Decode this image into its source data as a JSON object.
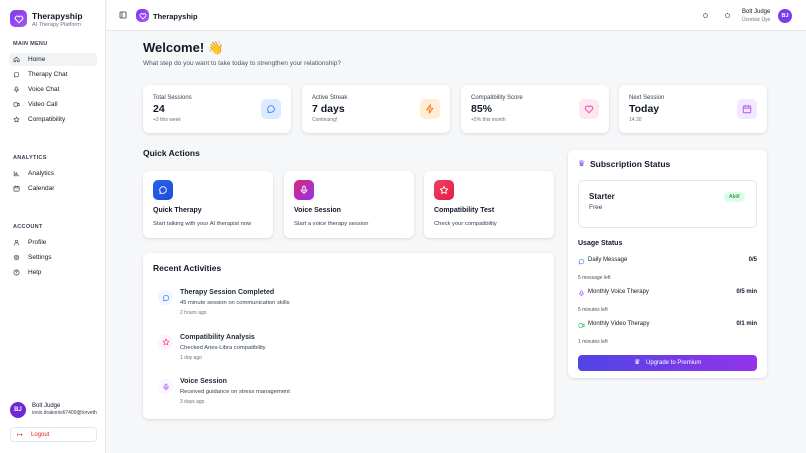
{
  "sidebar": {
    "brand": "Therapyship",
    "tagline": "AI Therapy Platform",
    "sections": [
      {
        "title": "MAIN MENU",
        "items": [
          "Home",
          "Therapy Chat",
          "Voice Chat",
          "Video Call",
          "Compatibility"
        ]
      },
      {
        "title": "ANALYTICS",
        "items": [
          "Analytics",
          "Calendar"
        ]
      },
      {
        "title": "ACCOUNT",
        "items": [
          "Profile",
          "Settings",
          "Help"
        ]
      }
    ],
    "user": {
      "initials": "BJ",
      "name": "Bolt Judge",
      "email": "ionix.drakonis67409@torveth"
    },
    "logout": "Logout"
  },
  "topbar": {
    "brand": "Therapyship",
    "user": {
      "name": "Bolt Judge",
      "plan": "Ücretsiz Üye",
      "initials": "BJ"
    }
  },
  "welcome": {
    "title": "Welcome! 👋",
    "subtitle": "What step do you want to take today to strengthen your relationship?"
  },
  "stats": [
    {
      "label": "Total Sessions",
      "value": "24",
      "note": "+3 this week"
    },
    {
      "label": "Active Streak",
      "value": "7 days",
      "note": "Continuing!"
    },
    {
      "label": "Compatibility Score",
      "value": "85%",
      "note": "+5% this month"
    },
    {
      "label": "Next Session",
      "value": "Today",
      "note": "14:30"
    }
  ],
  "quick_actions": {
    "title": "Quick Actions",
    "items": [
      {
        "title": "Quick Therapy",
        "description": "Start talking with your AI therapist now"
      },
      {
        "title": "Voice Session",
        "description": "Start a voice therapy session"
      },
      {
        "title": "Compatibility Test",
        "description": "Check your compatibility"
      }
    ]
  },
  "recent_activities": {
    "title": "Recent Activities",
    "items": [
      {
        "title": "Therapy Session Completed",
        "description": "45 minute session on communication skills",
        "time": "2 hours ago"
      },
      {
        "title": "Compatibility Analysis",
        "description": "Checked Aries-Libra compatibility",
        "time": "1 day ago"
      },
      {
        "title": "Voice Session",
        "description": "Received guidance on stress management",
        "time": "3 days ago"
      }
    ]
  },
  "subscription": {
    "title": "Subscription Status",
    "plan": "Starter",
    "price": "Free",
    "badge": "Aktif",
    "usage_title": "Usage Status",
    "usage": [
      {
        "label": "Daily Message",
        "value": "0/5",
        "remaining": "5 message left"
      },
      {
        "label": "Monthly Voice Therapy",
        "value": "0/5 min",
        "remaining": "5 minutes left"
      },
      {
        "label": "Monthly Video Therapy",
        "value": "0/1 min",
        "remaining": "1 minutes left"
      }
    ],
    "button": "Upgrade to Premium"
  }
}
